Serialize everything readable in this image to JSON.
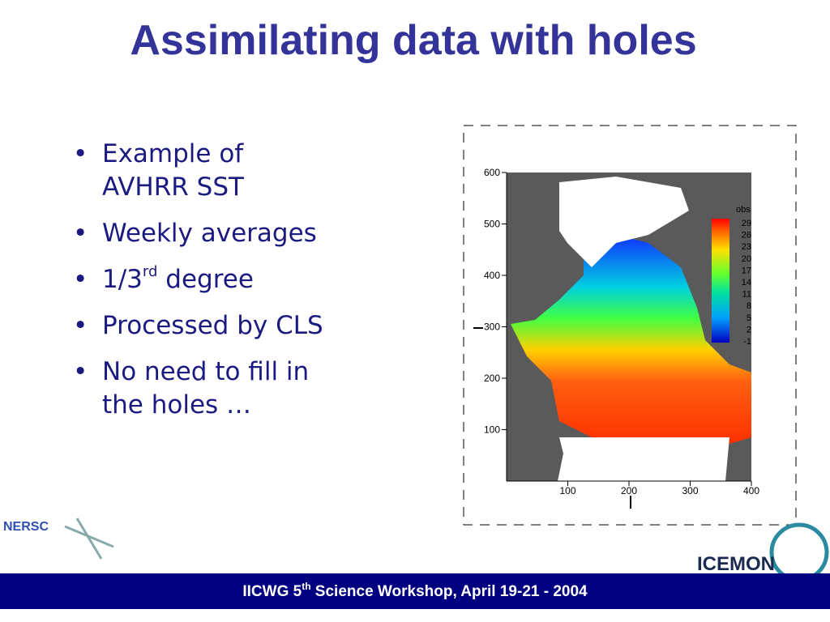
{
  "title": "Assimilating data with holes",
  "bullets": [
    "Example of\nAVHRR SST",
    "Weekly averages",
    {
      "main": "1/3",
      "sup": "rd",
      "after": " degree"
    },
    "Processed by CLS",
    "No need to fill in\nthe holes …"
  ],
  "figure": {
    "yticks": [
      600,
      500,
      400,
      300,
      200,
      100
    ],
    "xticks": [
      100,
      200,
      300,
      400
    ],
    "colorbar": {
      "title": "obs",
      "ticks": [
        29,
        26,
        23,
        20,
        17,
        14,
        11,
        8,
        5,
        2,
        -1
      ]
    }
  },
  "logos": {
    "left": "NERSC",
    "right": "ICEMON"
  },
  "footer": {
    "main": "IICWG 5",
    "sup": "th",
    "after": " Science Workshop, April 19-21 - 2004"
  }
}
